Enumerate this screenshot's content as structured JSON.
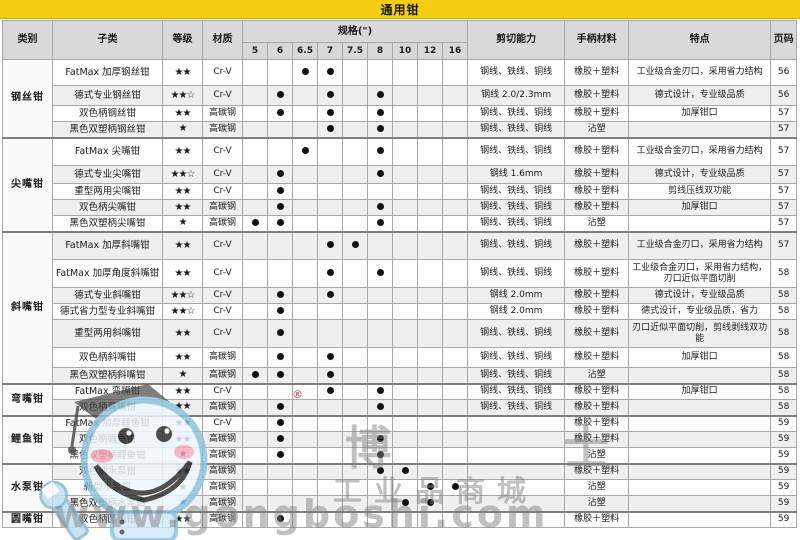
{
  "title": "通用钳",
  "header": {
    "category": "类别",
    "subcategory": "子类",
    "grade": "等级",
    "material": "材质",
    "spec": "规格(\")",
    "spec_sizes": [
      "5",
      "6",
      "6.5",
      "7",
      "7.5",
      "8",
      "10",
      "12",
      "16"
    ],
    "cutting": "剪切能力",
    "handle": "手柄材料",
    "features": "特点",
    "page": "页码"
  },
  "groups": [
    {
      "category": "钢丝钳",
      "rows": [
        {
          "name": "FatMax 加厚钢丝钳",
          "grade": "★★",
          "material": "Cr-V",
          "sizes": [
            "6.5",
            "7"
          ],
          "cutting": "钢线、铁线、铜线",
          "handle": "橡胶＋塑料",
          "features": "工业级合金刃口，采用省力结构",
          "page": "56"
        },
        {
          "name": "德式专业钢丝钳",
          "grade": "★★☆",
          "material": "Cr-V",
          "sizes": [
            "6",
            "7",
            "8"
          ],
          "cutting": "钢线 2.0/2.3mm",
          "handle": "橡胶＋塑料",
          "features": "德式设计，专业级品质",
          "page": "56"
        },
        {
          "name": "双色柄钢丝钳",
          "grade": "★★",
          "material": "高碳钢",
          "sizes": [
            "6",
            "7",
            "8"
          ],
          "cutting": "钢线、铁线、铜线",
          "handle": "橡胶＋塑料",
          "features": "加厚钳口",
          "page": "57"
        },
        {
          "name": "黑色双塑柄钢丝钳",
          "grade": "★",
          "material": "高碳钢",
          "sizes": [
            "7",
            "8"
          ],
          "cutting": "钢线、铁线、铜线",
          "handle": "沾塑",
          "features": "",
          "page": "57"
        }
      ]
    },
    {
      "category": "尖嘴钳",
      "rows": [
        {
          "name": "FatMax 尖嘴钳",
          "grade": "★★",
          "material": "Cr-V",
          "sizes": [
            "6.5",
            "8"
          ],
          "cutting": "钢线、铁线、铜线",
          "handle": "橡胶＋塑料",
          "features": "工业级合金刃口，采用省力结构",
          "page": "57"
        },
        {
          "name": "德式专业尖嘴钳",
          "grade": "★★☆",
          "material": "Cr-V",
          "sizes": [
            "6",
            "8"
          ],
          "cutting": "钢线 1.6mm",
          "handle": "橡胶＋塑料",
          "features": "德式设计，专业级品质",
          "page": "57"
        },
        {
          "name": "重型两用尖嘴钳",
          "grade": "★★",
          "material": "Cr-V",
          "sizes": [
            "6"
          ],
          "cutting": "钢线、铁线、铜线",
          "handle": "橡胶＋塑料",
          "features": "剪线压线双功能",
          "page": "57"
        },
        {
          "name": "双色柄尖嘴钳",
          "grade": "★★",
          "material": "高碳钢",
          "sizes": [
            "6",
            "8"
          ],
          "cutting": "钢线、铁线、铜线",
          "handle": "橡胶＋塑料",
          "features": "加厚钳口",
          "page": "57"
        },
        {
          "name": "黑色双塑柄尖嘴钳",
          "grade": "★",
          "material": "高碳钢",
          "sizes": [
            "5",
            "6",
            "8"
          ],
          "cutting": "钢线、铁线、铜线",
          "handle": "沾塑",
          "features": "",
          "page": "57"
        }
      ]
    },
    {
      "category": "斜嘴钳",
      "rows": [
        {
          "name": "FatMax 加厚斜嘴钳",
          "grade": "★★",
          "material": "Cr-V",
          "sizes": [
            "7",
            "7.5"
          ],
          "cutting": "钢线、铁线、铜线",
          "handle": "橡胶＋塑料",
          "features": "工业级合金刃口，采用省力结构",
          "page": "57"
        },
        {
          "name": "FatMax 加厚角度斜嘴钳",
          "grade": "★★",
          "material": "Cr-V",
          "sizes": [
            "7",
            "8"
          ],
          "cutting": "钢线、铁线、铜线",
          "handle": "橡胶＋塑料",
          "features": "工业级合金刃口，采用省力结构，刃口近似平面切削",
          "page": "58"
        },
        {
          "name": "德式专业斜嘴钳",
          "grade": "★★☆",
          "material": "Cr-V",
          "sizes": [
            "6",
            "7"
          ],
          "cutting": "钢线 2.0mm",
          "handle": "橡胶＋塑料",
          "features": "德式设计，专业级品质",
          "page": "58"
        },
        {
          "name": "德式省力型专业斜嘴钳",
          "grade": "★★☆",
          "material": "Cr-V",
          "sizes": [
            "6"
          ],
          "cutting": "钢线 2.0mm",
          "handle": "橡胶＋塑料",
          "features": "德式设计，专业级品质，省力",
          "page": "58"
        },
        {
          "name": "重型两用斜嘴钳",
          "grade": "★★",
          "material": "Cr-V",
          "sizes": [
            "6"
          ],
          "cutting": "钢线、铁线、铜线",
          "handle": "橡胶＋塑料",
          "features": "刃口近似平面切削，剪线剥线双功能",
          "page": "58"
        },
        {
          "name": "双色柄斜嘴钳",
          "grade": "★★",
          "material": "高碳钢",
          "sizes": [
            "6",
            "7"
          ],
          "cutting": "钢线、铁线、铜线",
          "handle": "橡胶＋塑料",
          "features": "加厚钳口",
          "page": "58"
        },
        {
          "name": "黑色双塑柄斜嘴钳",
          "grade": "★",
          "material": "高碳钢",
          "sizes": [
            "5",
            "6",
            "7"
          ],
          "cutting": "钢线、铁线、铜线",
          "handle": "沾塑",
          "features": "",
          "page": "58"
        }
      ]
    },
    {
      "category": "弯嘴钳",
      "rows": [
        {
          "name": "FatMax 弯嘴钳",
          "grade": "★★",
          "material": "Cr-V",
          "sizes": [
            "7",
            "8"
          ],
          "cutting": "钢线、铁线、铜线",
          "handle": "橡胶＋塑料",
          "features": "加厚钳口",
          "page": "58"
        },
        {
          "name": "双色柄弯嘴钳",
          "grade": "★★",
          "material": "高碳钢",
          "sizes": [
            "6",
            "8"
          ],
          "cutting": "钢线、铁线、铜线",
          "handle": "橡胶＋塑料",
          "features": "",
          "page": "58"
        }
      ]
    },
    {
      "category": "鲤鱼钳",
      "rows": [
        {
          "name": "FatMax 加厚鲤鱼钳",
          "grade": "★★",
          "material": "Cr-V",
          "sizes": [
            "6"
          ],
          "cutting": "",
          "handle": "橡胶＋塑料",
          "features": "",
          "page": "59"
        },
        {
          "name": "双色柄鲤鱼钳",
          "grade": "★★",
          "material": "高碳钢",
          "sizes": [
            "6",
            "8"
          ],
          "cutting": "",
          "handle": "橡胶＋塑料",
          "features": "",
          "page": "59"
        },
        {
          "name": "黑色双塑柄鲤鱼钳",
          "grade": "★",
          "material": "高碳钢",
          "sizes": [
            "6",
            "8"
          ],
          "cutting": "",
          "handle": "沾塑",
          "features": "",
          "page": "59"
        }
      ]
    },
    {
      "category": "水泵钳",
      "rows": [
        {
          "name": "双色柄水泵钳",
          "grade": "★★",
          "material": "高碳钢",
          "sizes": [
            "8",
            "10"
          ],
          "cutting": "",
          "handle": "橡胶＋塑料",
          "features": "",
          "page": "59"
        },
        {
          "name": "新型水泵钳",
          "grade": "★",
          "material": "高碳钢",
          "sizes": [
            "12",
            "16"
          ],
          "cutting": "",
          "handle": "沾塑",
          "features": "",
          "page": "59"
        },
        {
          "name": "黑色双塑柄水泵钳",
          "grade": "★",
          "material": "高碳钢",
          "sizes": [
            "10",
            "12"
          ],
          "cutting": "",
          "handle": "沾塑",
          "features": "",
          "page": "59"
        }
      ]
    },
    {
      "category": "圆嘴钳",
      "rows": [
        {
          "name": "双色柄圆嘴钳",
          "grade": "★★",
          "material": "高碳钢",
          "sizes": [
            "6"
          ],
          "cutting": "",
          "handle": "橡胶＋塑料",
          "features": "",
          "page": "59"
        }
      ]
    }
  ],
  "watermark": {
    "mascot_text": "博 士",
    "shop": "工业品商城",
    "site": "www.gongboshi.com",
    "reg": "®"
  },
  "colors": {
    "title_bg": "#F5CE11",
    "header_bg": "#D9D9D9",
    "stripe": "#EFEFEF",
    "dot": "#111111"
  }
}
